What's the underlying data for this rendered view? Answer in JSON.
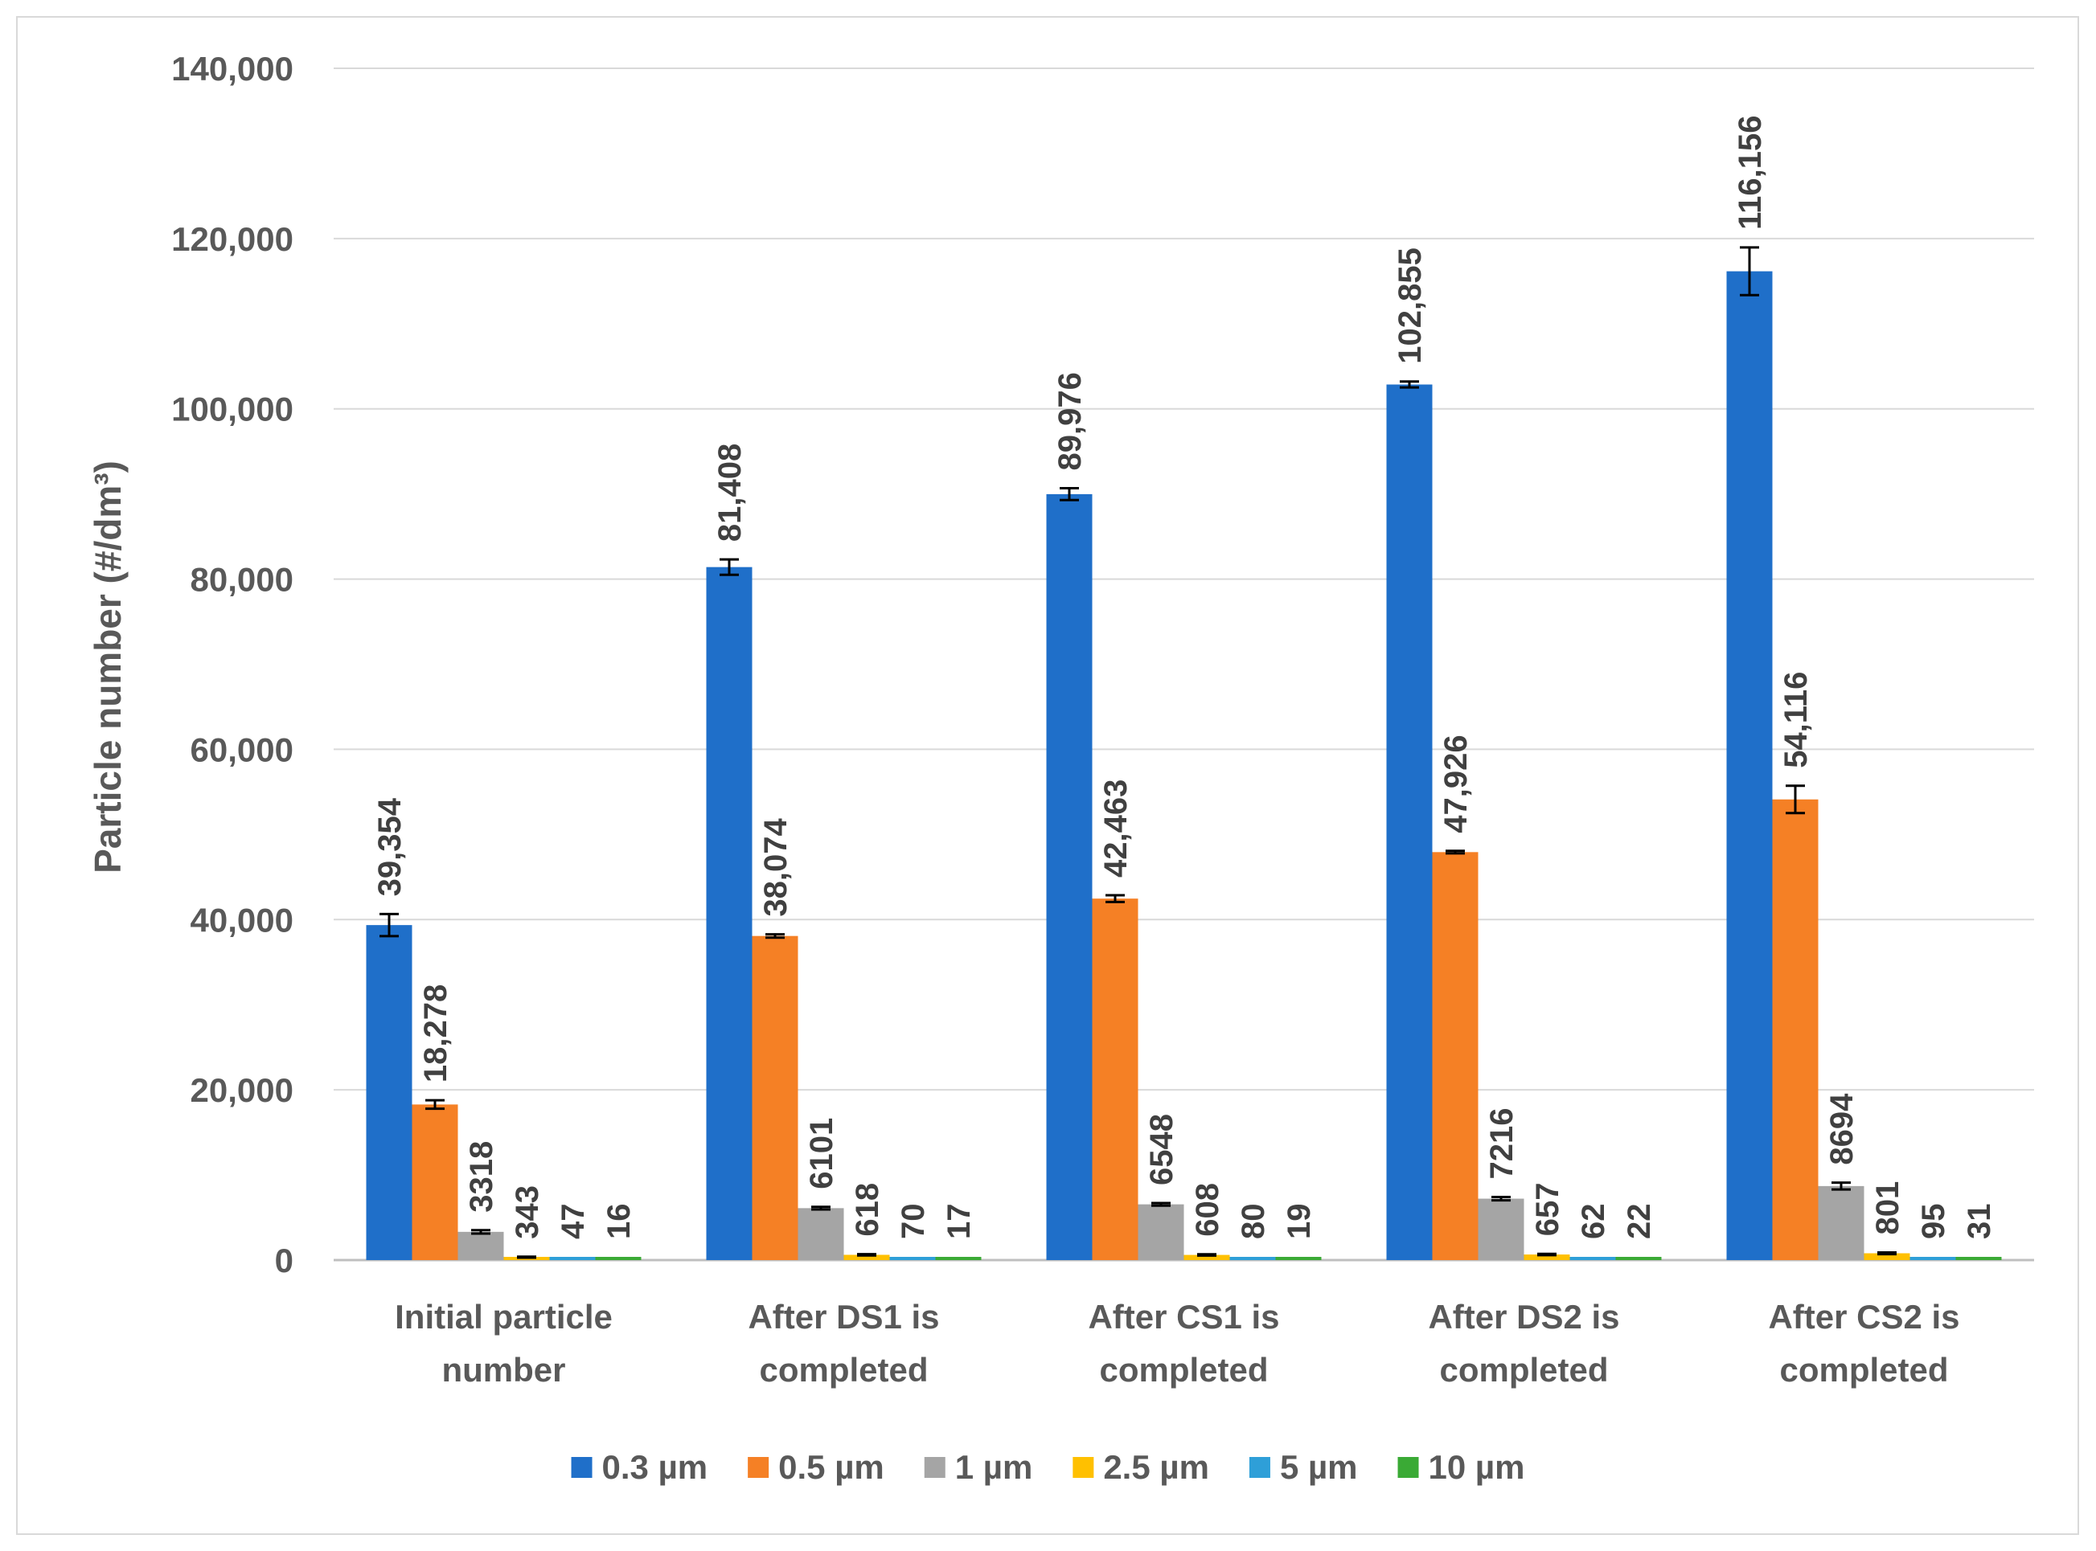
{
  "chart_data": {
    "type": "bar",
    "title": "",
    "xlabel": "",
    "ylabel": "Particle number (#/dm³)",
    "ylim": [
      0,
      140000
    ],
    "y_ticks": [
      "0",
      "20,000",
      "40,000",
      "60,000",
      "80,000",
      "100,000",
      "120,000",
      "140,000"
    ],
    "y_tick_values": [
      0,
      20000,
      40000,
      60000,
      80000,
      100000,
      120000,
      140000
    ],
    "grid": true,
    "legend_position": "bottom",
    "categories": [
      [
        "Initial particle",
        "number"
      ],
      [
        "After DS1 is",
        "completed"
      ],
      [
        "After CS1 is",
        "completed"
      ],
      [
        "After DS2 is",
        "completed"
      ],
      [
        "After CS2 is",
        "completed"
      ]
    ],
    "series": [
      {
        "name": "0.3 µm",
        "color": "#1f6fc9",
        "values": [
          39354,
          81408,
          89976,
          102855,
          116156
        ],
        "labels": [
          "39,354",
          "81,408",
          "89,976",
          "102,855",
          "116,156"
        ],
        "errors": [
          1300,
          900,
          700,
          350,
          2800
        ]
      },
      {
        "name": "0.5 µm",
        "color": "#f58025",
        "values": [
          18278,
          38074,
          42463,
          47926,
          54116
        ],
        "labels": [
          "18,278",
          "38,074",
          "42,463",
          "47,926",
          "54,116"
        ],
        "errors": [
          500,
          200,
          400,
          150,
          1600
        ]
      },
      {
        "name": "1 µm",
        "color": "#a5a5a5",
        "values": [
          3318,
          6101,
          6548,
          7216,
          8694
        ],
        "labels": [
          "3318",
          "6101",
          "6548",
          "7216",
          "8694"
        ],
        "errors": [
          200,
          150,
          150,
          200,
          400
        ]
      },
      {
        "name": "2.5 µm",
        "color": "#ffc000",
        "values": [
          343,
          618,
          608,
          657,
          801
        ],
        "labels": [
          "343",
          "618",
          "608",
          "657",
          "801"
        ],
        "errors": [
          60,
          80,
          80,
          80,
          100
        ]
      },
      {
        "name": "5 µm",
        "color": "#2e9fd8",
        "values": [
          47,
          70,
          80,
          62,
          95
        ],
        "labels": [
          "47",
          "70",
          "80",
          "62",
          "95"
        ],
        "errors": [
          0,
          0,
          0,
          0,
          0
        ]
      },
      {
        "name": "10 µm",
        "color": "#3aaa35",
        "values": [
          16,
          17,
          19,
          22,
          31
        ],
        "labels": [
          "16",
          "17",
          "19",
          "22",
          "31"
        ],
        "errors": [
          0,
          0,
          0,
          0,
          0
        ]
      }
    ]
  }
}
